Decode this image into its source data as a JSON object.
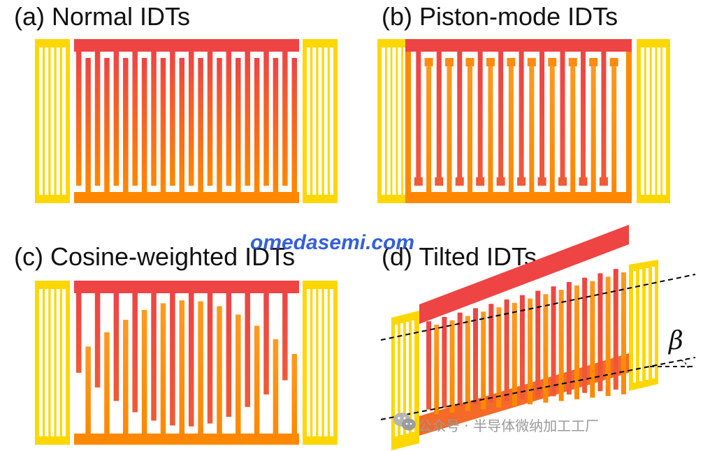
{
  "panels": {
    "a": {
      "title": "(a) Normal IDTs"
    },
    "b": {
      "title": "(b) Piston-mode IDTs"
    },
    "c": {
      "title": "(c) Cosine-weighted IDTs"
    },
    "d": {
      "title": "(d) Tilted IDTs",
      "angle_symbol": "β"
    }
  },
  "watermark": "omedasemi.com",
  "source": "公众号 · 半导体微纳加工工厂",
  "colors": {
    "reflector": "#FFD700",
    "electrode_top": "#EE4444",
    "electrode_bottom": "#FF8800",
    "tilted_bottom": "#F46A28"
  }
}
